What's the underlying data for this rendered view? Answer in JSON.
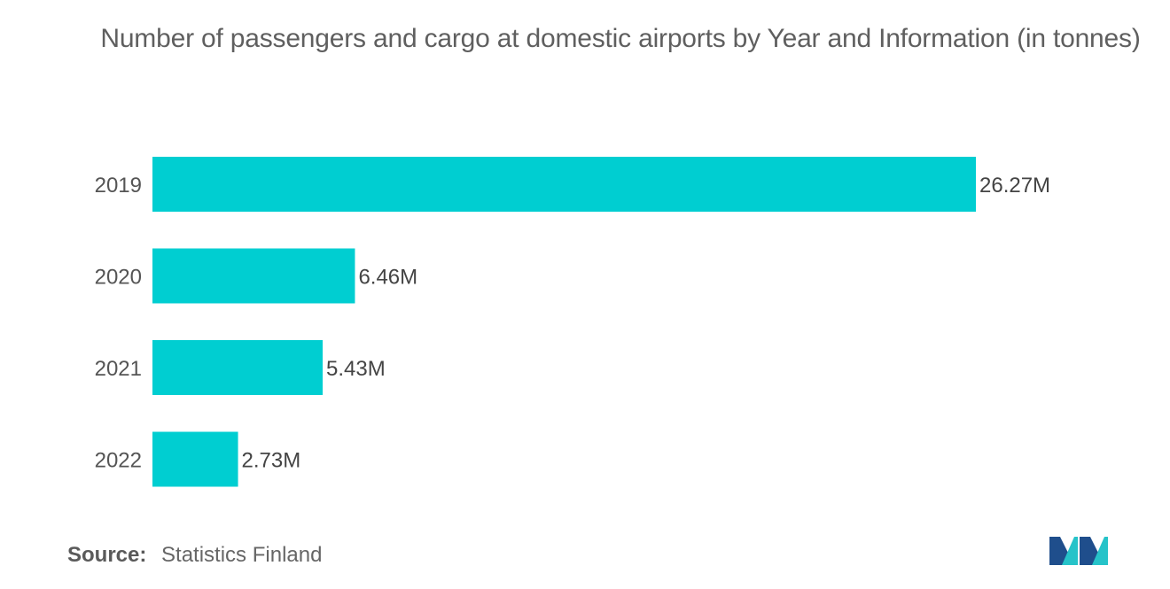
{
  "chart_data": {
    "type": "bar",
    "orientation": "horizontal",
    "title": "Number of passengers and cargo at domestic airports by Year and Information (in tonnes)",
    "categories": [
      "2019",
      "2020",
      "2021",
      "2022"
    ],
    "values": [
      26.27,
      6.46,
      5.43,
      2.73
    ],
    "value_labels": [
      "26.27M",
      "6.46M",
      "5.43M",
      "2.73M"
    ],
    "unit": "M",
    "xlim": [
      0,
      26.27
    ],
    "grid": false,
    "legend": "none",
    "bar_color": "#00CED1"
  },
  "footer": {
    "source_label": "Source:",
    "source_text": "Statistics Finland"
  },
  "logo": {
    "icon": "mordor-intelligence-logo-icon",
    "colors": [
      "#1f4e8c",
      "#26c3c9"
    ]
  }
}
